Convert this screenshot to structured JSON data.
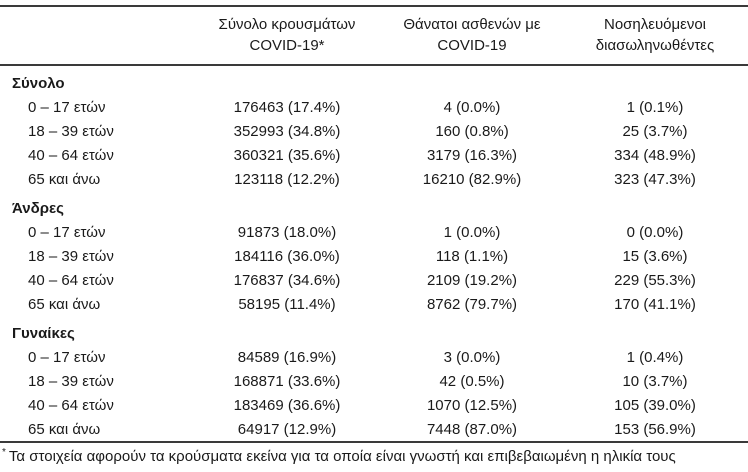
{
  "page": {
    "background": "#ffffff",
    "text_color": "#1a1a1a",
    "rule_color": "#3a3a3a"
  },
  "table": {
    "header": {
      "col_cases": {
        "line1": "Σύνολο κρουσμάτων",
        "line2": "COVID-19*"
      },
      "col_deaths": {
        "line1": "Θάνατοι ασθενών με",
        "line2": "COVID-19"
      },
      "col_intubated": {
        "line1": "Νοσηλευόμενοι",
        "line2": "διασωληνωθέντες"
      }
    },
    "sections": [
      {
        "title": "Σύνολο",
        "rows": [
          {
            "label": "0 – 17 ετών",
            "cases": "176463 (17.4%)",
            "deaths": "4 (0.0%)",
            "intubated": "1 (0.1%)"
          },
          {
            "label": "18 – 39 ετών",
            "cases": "352993 (34.8%)",
            "deaths": "160 (0.8%)",
            "intubated": "25 (3.7%)"
          },
          {
            "label": "40 – 64 ετών",
            "cases": "360321 (35.6%)",
            "deaths": "3179 (16.3%)",
            "intubated": "334 (48.9%)"
          },
          {
            "label": "65 και άνω",
            "cases": "123118 (12.2%)",
            "deaths": "16210 (82.9%)",
            "intubated": "323 (47.3%)"
          }
        ]
      },
      {
        "title": "Άνδρες",
        "rows": [
          {
            "label": "0 – 17 ετών",
            "cases": "91873 (18.0%)",
            "deaths": "1 (0.0%)",
            "intubated": "0 (0.0%)"
          },
          {
            "label": "18 – 39 ετών",
            "cases": "184116 (36.0%)",
            "deaths": "118 (1.1%)",
            "intubated": "15 (3.6%)"
          },
          {
            "label": "40 – 64 ετών",
            "cases": "176837 (34.6%)",
            "deaths": "2109 (19.2%)",
            "intubated": "229 (55.3%)"
          },
          {
            "label": "65 και άνω",
            "cases": "58195 (11.4%)",
            "deaths": "8762 (79.7%)",
            "intubated": "170 (41.1%)"
          }
        ]
      },
      {
        "title": "Γυναίκες",
        "rows": [
          {
            "label": "0 – 17 ετών",
            "cases": "84589 (16.9%)",
            "deaths": "3 (0.0%)",
            "intubated": "1 (0.4%)"
          },
          {
            "label": "18 – 39 ετών",
            "cases": "168871 (33.6%)",
            "deaths": "42 (0.5%)",
            "intubated": "10 (3.7%)"
          },
          {
            "label": "40 – 64 ετών",
            "cases": "183469 (36.6%)",
            "deaths": "1070 (12.5%)",
            "intubated": "105 (39.0%)"
          },
          {
            "label": "65 και άνω",
            "cases": "64917 (12.9%)",
            "deaths": "7448 (87.0%)",
            "intubated": "153 (56.9%)"
          }
        ]
      }
    ],
    "footnote": {
      "symbol": "*",
      "text": "Τα στοιχεία αφορούν τα κρούσματα εκείνα για τα οποία είναι γνωστή και επιβεβαιωμένη η ηλικία τους"
    }
  }
}
